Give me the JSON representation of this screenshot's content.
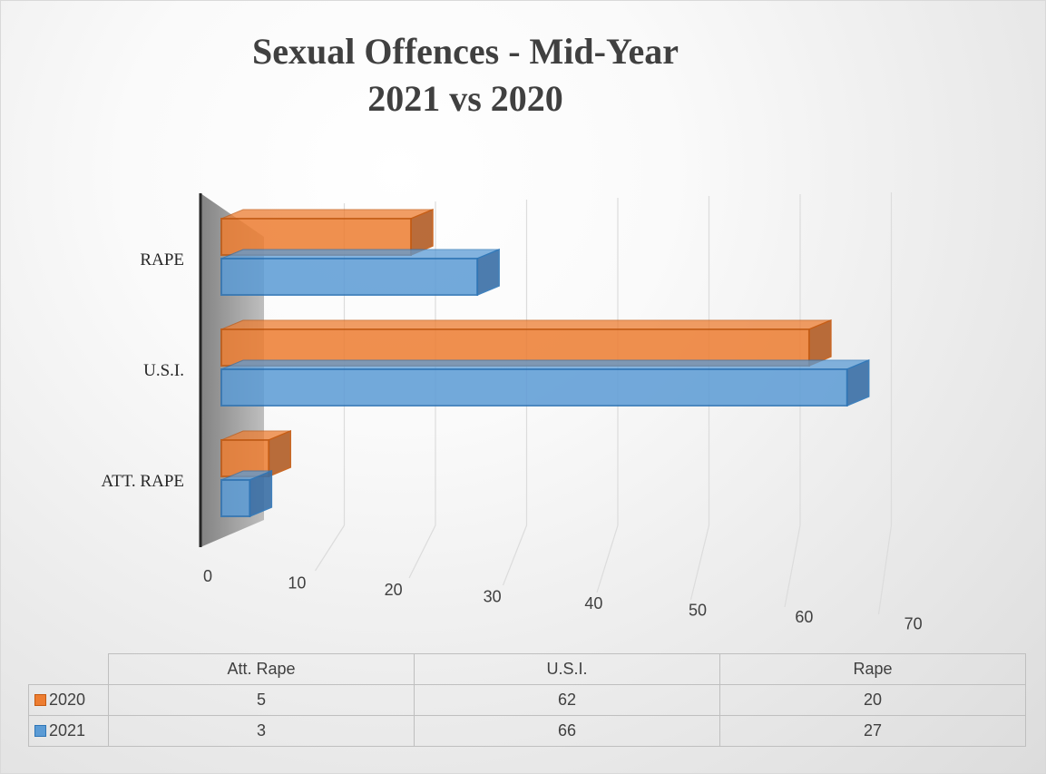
{
  "chart_data": {
    "type": "bar",
    "orientation": "horizontal",
    "style": "3d-clustered-bar",
    "title": [
      "Sexual Offences - Mid-Year",
      "2021 vs 2020"
    ],
    "categories": [
      "ATT. RAPE",
      "U.S.I.",
      "RAPE"
    ],
    "series": [
      {
        "name": "2020",
        "values": [
          5,
          62,
          20
        ],
        "color": "#ed7d31"
      },
      {
        "name": "2021",
        "values": [
          3,
          66,
          27
        ],
        "color": "#5b9bd5"
      }
    ],
    "xlim": [
      0,
      70
    ],
    "xticks": [
      "0",
      "10",
      "20",
      "30",
      "40",
      "50",
      "60",
      "70"
    ],
    "grid": true,
    "legend": "data-table-bottom",
    "data_table": {
      "columns": [
        "Att. Rape",
        "U.S.I.",
        "Rape"
      ],
      "rows": [
        {
          "label": "2020",
          "values": [
            "5",
            "62",
            "20"
          ]
        },
        {
          "label": "2021",
          "values": [
            "3",
            "66",
            "27"
          ]
        }
      ]
    }
  }
}
